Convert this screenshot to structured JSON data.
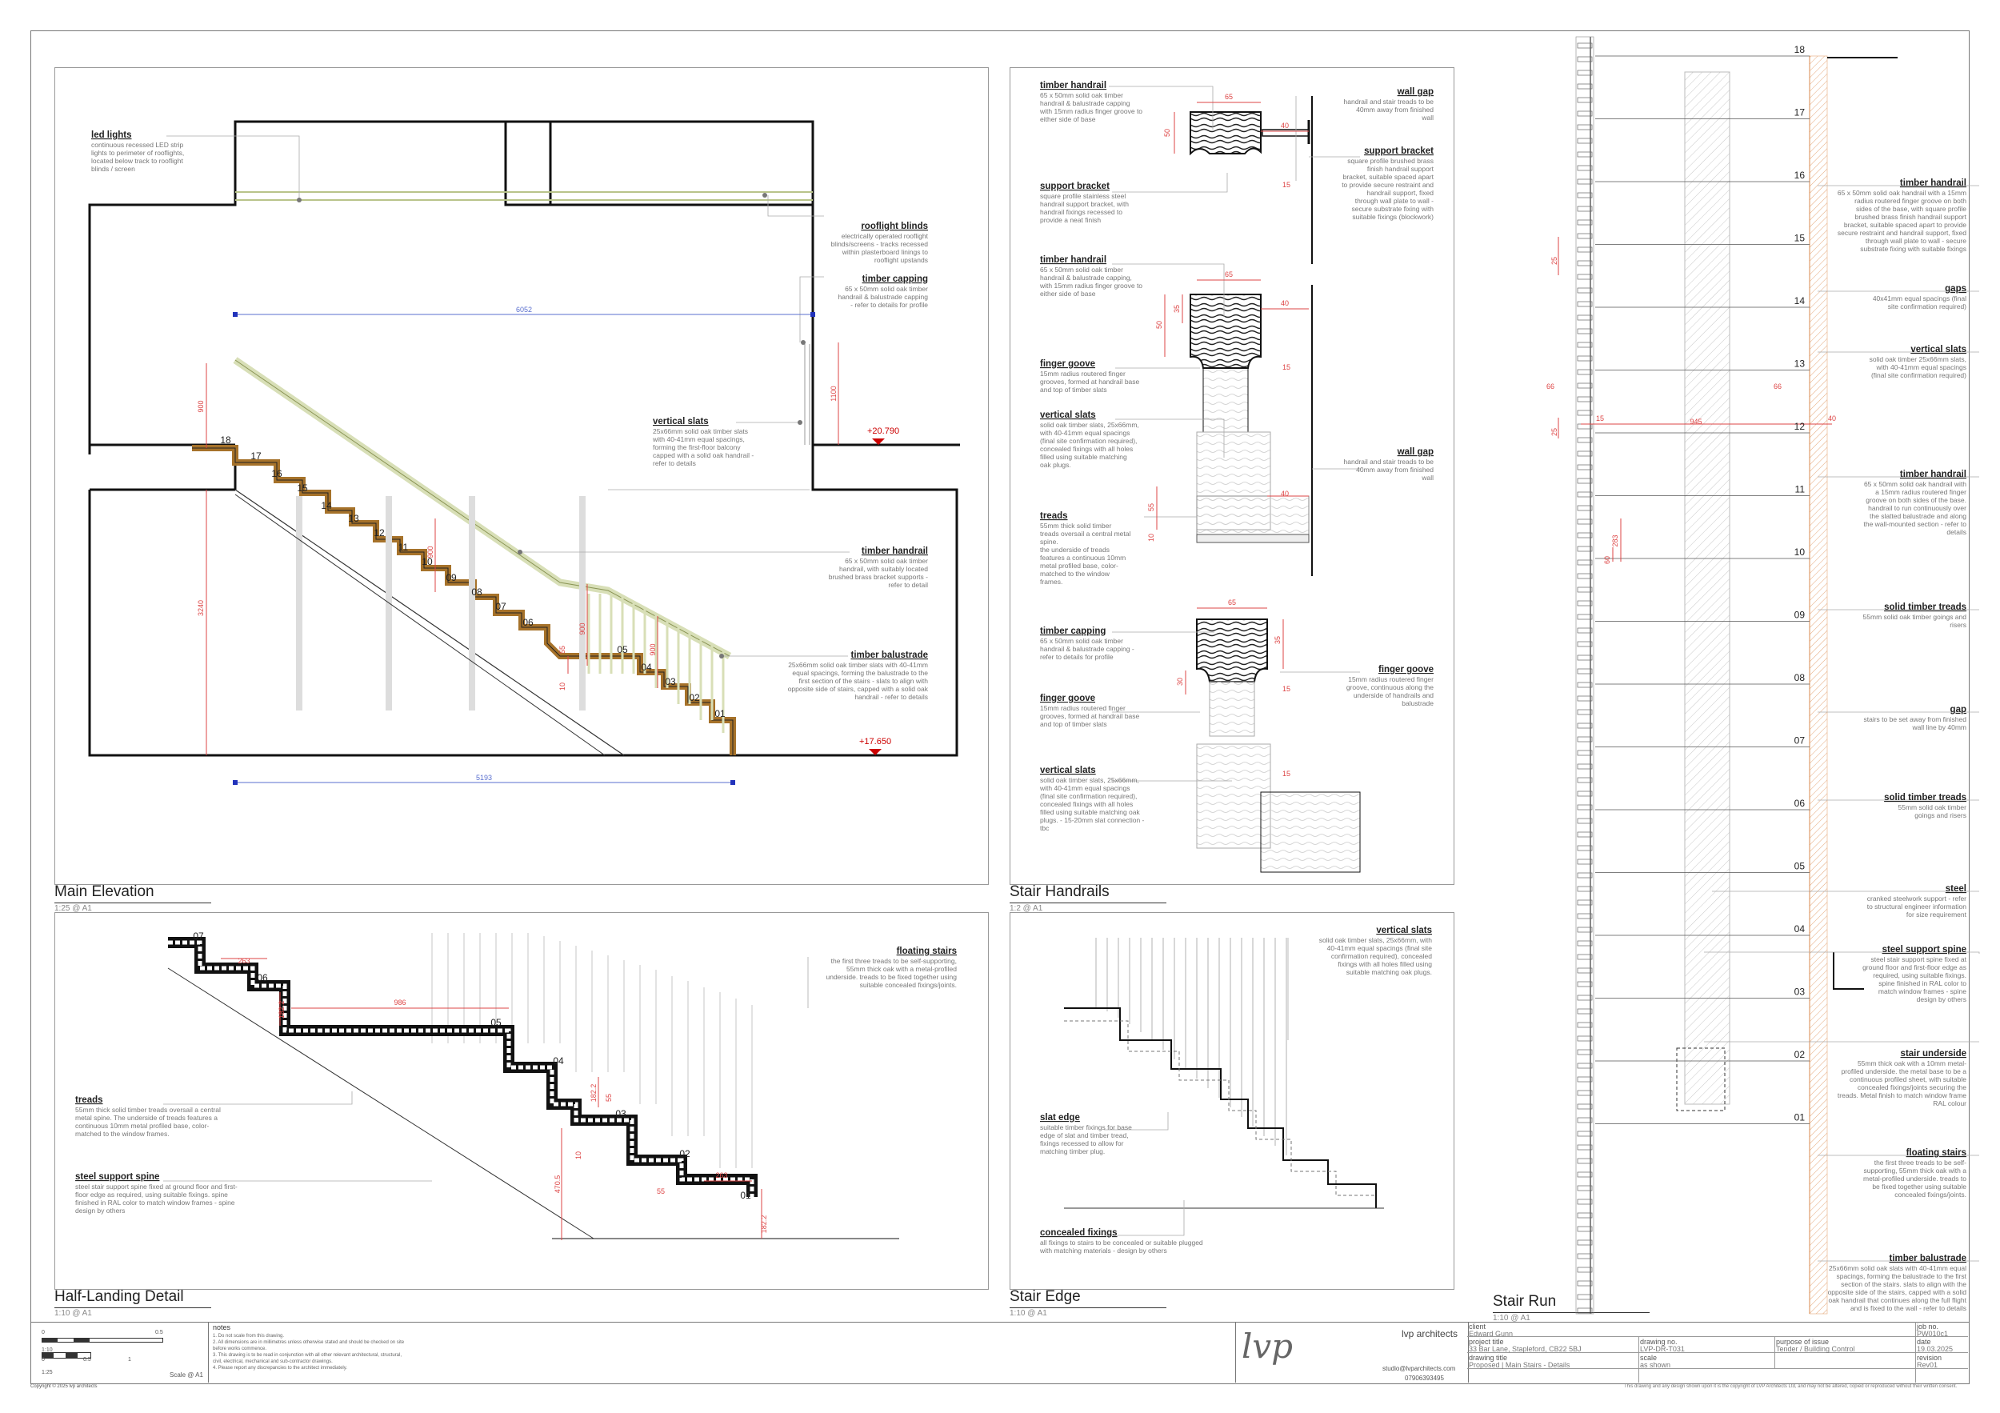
{
  "panels": {
    "main_elevation": {
      "title": "Main Elevation",
      "scale": "1:25 @ A1"
    },
    "stair_handrails": {
      "title": "Stair Handrails",
      "scale": "1:2 @ A1"
    },
    "stair_run": {
      "title": "Stair Run",
      "scale": "1:10 @ A1"
    },
    "half_landing": {
      "title": "Half-Landing Detail",
      "scale": "1:10 @ A1"
    },
    "stair_edge": {
      "title": "Stair Edge",
      "scale": "1:10 @ A1"
    }
  },
  "elevation": {
    "notes": [
      {
        "h": "led lights",
        "t": [
          "continuous recessed LED strip",
          "lights to perimeter of rooflights,",
          "located below track to rooflight",
          "blinds / screen"
        ]
      },
      {
        "h": "rooflight blinds",
        "t": [
          "electrically operated rooflight",
          "blinds/screens - tracks recessed",
          "within plasterboard linings to",
          "rooflight upstands"
        ]
      },
      {
        "h": "timber capping",
        "t": [
          "65 x 50mm solid oak timber",
          "handrail & balustrade capping",
          "- refer to details for profile"
        ]
      },
      {
        "h": "vertical slats",
        "t": [
          "25x66mm solid oak timber slats",
          "with 40-41mm equal spacings,",
          "forming the first-floor balcony",
          "capped with a solid oak handrail -",
          "refer to details"
        ]
      },
      {
        "h": "timber handrail",
        "t": [
          "65 x 50mm solid oak timber",
          "handrail, with suitably located",
          "brushed brass bracket supports -",
          "refer to detail"
        ]
      },
      {
        "h": "timber balustrade",
        "t": [
          "25x66mm solid oak timber slats with 40-41mm",
          "equal spacings, forming the balustrade to the",
          "first section of the stairs - slats to align with",
          "opposite side of stairs, capped with a solid oak",
          "handrail - refer to details"
        ]
      }
    ],
    "dims": {
      "width_top": "6052",
      "width_bottom": "5193",
      "height": "3240",
      "bal_h1": "900",
      "bal_h2": "900",
      "bal_h3": "900",
      "bal_h4": "900",
      "upper": "1100",
      "gap55": "55",
      "gap10": "10"
    },
    "levels": {
      "upper": "+20.790",
      "lower": "+17.650"
    },
    "steps": [
      "18",
      "17",
      "16",
      "15",
      "14",
      "13",
      "12",
      "11",
      "10",
      "09",
      "08",
      "07",
      "06",
      "05",
      "04",
      "03",
      "02",
      "01"
    ]
  },
  "handrails": {
    "notes": [
      {
        "h": "timber handrail",
        "t": [
          "65 x 50mm solid oak timber",
          "handrail & balustrade capping",
          "with 15mm radius finger groove to",
          "either side of base"
        ]
      },
      {
        "h": "wall gap",
        "t": [
          "handrail and stair treads to be",
          "40mm away from finished",
          "wall"
        ]
      },
      {
        "h": "support bracket",
        "t": [
          "square profile stainless steel",
          "handrail support bracket, with",
          "handrail fixings recessed to",
          "provide a neat finish"
        ]
      },
      {
        "h": "support bracket",
        "t": [
          "square profile brushed brass",
          "finish handrail support",
          "bracket, suitable spaced apart",
          "to provide secure restraint and",
          "handrail support, fixed",
          "through wall plate to wall -",
          "secure substrate fixing with",
          "suitable fixings (blockwork)"
        ]
      },
      {
        "h": "timber handrail",
        "t": [
          "65 x 50mm solid oak timber",
          "handrail & balustrade capping,",
          "with 15mm radius finger groove to",
          "either side of base"
        ]
      },
      {
        "h": "finger goove",
        "t": [
          "15mm radius routered finger",
          "grooves, formed at handrail base",
          "and top of timber slats"
        ]
      },
      {
        "h": "vertical slats",
        "t": [
          "solid oak timber slats, 25x66mm,",
          "with 40-41mm equal spacings",
          "(final site confirmation required),",
          "concealed fixings with all holes",
          "filled using suitable matching",
          "oak plugs."
        ]
      },
      {
        "h": "wall gap",
        "t": [
          "handrail and stair treads to be",
          "40mm away from finished",
          "wall"
        ]
      },
      {
        "h": "treads",
        "t": [
          "55mm thick solid timber",
          "treads oversail a central metal",
          "spine.",
          "the underside of treads",
          "features a continuous 10mm",
          "metal profiled base, color-",
          "matched to the window",
          "frames."
        ]
      },
      {
        "h": "timber capping",
        "t": [
          "65 x 50mm solid oak timber",
          "handrail & balustrade capping -",
          "refer to details for profile"
        ]
      },
      {
        "h": "finger goove",
        "t": [
          "15mm radius routered finger",
          "groove, continuous along the",
          "underside of handrails and",
          "balustrade"
        ]
      },
      {
        "h": "finger goove",
        "t": [
          "15mm radius routered finger",
          "grooves, formed at handrail base",
          "and top of timber slats"
        ]
      },
      {
        "h": "vertical slats",
        "t": [
          "solid oak timber slats, 25x66mm,",
          "with 40-41mm equal spacings",
          "(final site confirmation required),",
          "concealed fixings with all holes",
          "filled using suitable matching oak",
          "plugs. - 15-20mm slat connection -",
          "tbc"
        ]
      }
    ],
    "dims": [
      "65",
      "40",
      "50",
      "15",
      "65",
      "40",
      "50",
      "35",
      "15",
      "55",
      "10",
      "40",
      "65",
      "35",
      "30",
      "15",
      "15"
    ]
  },
  "stair_run": {
    "numbers": [
      "18",
      "17",
      "16",
      "15",
      "14",
      "13",
      "12",
      "11",
      "10",
      "09",
      "08",
      "07",
      "06",
      "05",
      "04",
      "03",
      "02",
      "01"
    ],
    "dims": {
      "d25a": "25",
      "d66a": "66",
      "d66b": "66",
      "d25b": "25",
      "d15": "15",
      "d945": "945",
      "d40": "40",
      "d283": "283",
      "d60": "60"
    },
    "notes": [
      {
        "h": "timber handrail",
        "t": [
          "65 x 50mm solid oak handrail with a 15mm",
          "radius routered finger groove on both",
          "sides of the base, with square profile",
          "brushed brass finish handrail support",
          "bracket, suitable spaced apart to provide",
          "secure restraint and handrail support, fixed",
          "through wall plate to wall - secure",
          "substrate fixing with suitable fixings"
        ]
      },
      {
        "h": "gaps",
        "t": [
          "40x41mm equal spacings (final",
          "site confirmation required)"
        ]
      },
      {
        "h": "vertical slats",
        "t": [
          "solid oak timber 25x66mm slats,",
          "with 40-41mm equal spacings",
          "(final site confirmation required)"
        ]
      },
      {
        "h": "timber handrail",
        "t": [
          "65 x 50mm solid oak handrail with",
          "a 15mm radius routered finger",
          "groove on both sides of the base.",
          "handrail to run continuously over",
          "the slatted balustrade and along",
          "the wall-mounted section - refer to",
          "details"
        ]
      },
      {
        "h": "solid timber treads",
        "t": [
          "55mm solid oak timber goings and",
          "risers"
        ]
      },
      {
        "h": "gap",
        "t": [
          "stairs to be set away from finished",
          "wall line by 40mm"
        ]
      },
      {
        "h": "solid timber treads",
        "t": [
          "55mm solid oak timber",
          "goings and risers"
        ]
      },
      {
        "h": "steel",
        "t": [
          "cranked steelwork support - refer",
          "to structural engineer information",
          "for size requirement"
        ]
      },
      {
        "h": "steel support spine",
        "t": [
          "steel stair support spine fixed at",
          "ground floor and first-floor edge as",
          "required, using suitable fixings.",
          "spine finished in RAL color to",
          "match window frames - spine",
          "design by others"
        ]
      },
      {
        "h": "stair underside",
        "t": [
          "55mm thick oak with a 10mm metal-",
          "profiled underside. the metal base to be a",
          "continuous profiled sheet, with suitable",
          "concealed fixings/joints securing the",
          "treads. Metal finish to match window frame",
          "RAL colour"
        ]
      },
      {
        "h": "floating stairs",
        "t": [
          "the first three treads to be self-",
          "supporting, 55mm thick oak with a",
          "metal-profiled underside. treads to",
          "be fixed together using suitable",
          "concealed fixings/joints."
        ]
      },
      {
        "h": "timber balustrade",
        "t": [
          "25x66mm solid oak slats with 40-41mm equal",
          "spacings, forming the balustrade to the first",
          "section of the stairs. slats to align with the",
          "opposite side of the stairs, capped with a solid",
          "oak handrail that continues along the full flight",
          "and is fixed to the wall - refer to details"
        ]
      }
    ]
  },
  "half_landing": {
    "steps": [
      "07",
      "06",
      "05",
      "04",
      "03",
      "02",
      "01"
    ],
    "dims": {
      "d263a": "263",
      "d1822a": "182.2",
      "d986": "986",
      "d1822b": "182.2",
      "d55a": "55",
      "d10": "10",
      "d4705": "470.5",
      "d263b": "263",
      "d55b": "55",
      "d1822c": "182.2"
    },
    "notes": [
      {
        "h": "floating stairs",
        "t": [
          "the first three treads to be self-supporting,",
          "55mm thick oak with a metal-profiled",
          "underside. treads to be fixed together using",
          "suitable concealed fixings/joints."
        ]
      },
      {
        "h": "treads",
        "t": [
          "55mm thick solid timber treads oversail a central",
          "metal spine. The underside of treads features a",
          "continuous 10mm metal profiled base, color-",
          "matched to the window frames."
        ]
      },
      {
        "h": "steel support spine",
        "t": [
          "steel stair support spine fixed at ground floor and first-",
          "floor edge as required, using suitable fixings. spine",
          "finished in RAL color to match window frames - spine",
          "design by others"
        ]
      }
    ]
  },
  "stair_edge": {
    "notes": [
      {
        "h": "vertical slats",
        "t": [
          "solid oak timber slats, 25x66mm, with",
          "40-41mm equal spacings (final site",
          "confirmation required), concealed",
          "fixings with all holes filled using",
          "suitable matching oak plugs."
        ]
      },
      {
        "h": "slat edge",
        "t": [
          "suitable timber fixings for base",
          "edge of slat and timber tread,",
          "fixings recessed to allow for",
          "matching timber plug."
        ]
      },
      {
        "h": "concealed fixings",
        "t": [
          "all fixings to stairs to be concealed or suitable plugged",
          "with matching materials - design by others"
        ]
      }
    ]
  },
  "title_block": {
    "scale_bar": {
      "labels_top": [
        "0",
        "0.5"
      ],
      "label_mid": "1:10",
      "labels_bottom": [
        "0",
        "0.5",
        "1"
      ],
      "label_low": "1:25",
      "caption": "Scale @ A1"
    },
    "copyright": "Copyright © 2025 lvp architects",
    "notes_heading": "notes",
    "notes": [
      "1. Do not scale from this drawing.",
      "2. All dimensions are in millimetres unless otherwise stated and should be checked on site",
      "before works commence.",
      "3. This drawing is to be read in conjunction with all other relevant architectural, structural,",
      "civil, electrical, mechanical and sub-contractor drawings.",
      "4. Please report any discrepancies to the architect immediately."
    ],
    "logo_mark": "lvp",
    "firm": "lvp architects",
    "email": "studio@lvparchitects.com",
    "phone": "07906393495",
    "client_label": "client",
    "client": "Edward Gunn",
    "job_no_label": "job no.",
    "job_no": "PW010c1",
    "project_title_label": "project title",
    "project_title": "33 Bar Lane, Stapleford, CB22 5BJ",
    "drawing_no_label": "drawing no.",
    "drawing_no": "LVP-DR-T031",
    "purpose_label": "purpose of issue",
    "purpose": "Tender / Building Control",
    "date_label": "date",
    "date": "19.03.2025",
    "drawing_title_label": "drawing title",
    "drawing_title": "Proposed | Main Stairs - Details",
    "scale_label": "scale",
    "scale": "as shown",
    "revision_label": "revision",
    "revision": "Rev01",
    "disclaimer": "This drawing and any design shown upon it is the copyright of LVP Architects Ltd, and may not be altered, copied or reproduced without their written consent."
  }
}
